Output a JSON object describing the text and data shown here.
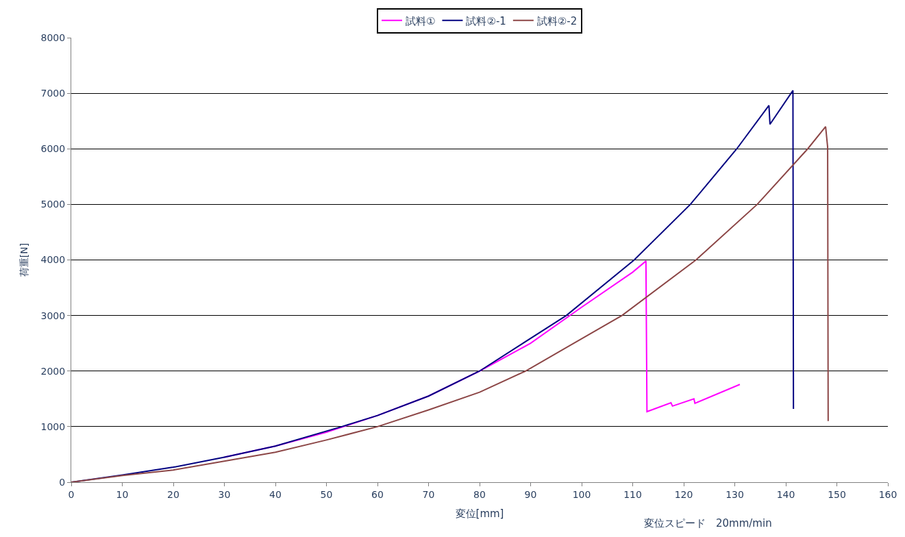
{
  "chart_data": {
    "type": "line",
    "xlabel": "変位[mm]",
    "ylabel": "荷重[N]",
    "annotations": [
      "変位スピード　20mm/min"
    ],
    "xlim": [
      0,
      160
    ],
    "xticks": [
      0,
      10,
      20,
      30,
      40,
      50,
      60,
      70,
      80,
      90,
      100,
      110,
      120,
      130,
      140,
      150,
      160
    ],
    "ylim": [
      0,
      8000
    ],
    "yticks": [
      0,
      1000,
      2000,
      3000,
      4000,
      5000,
      6000,
      7000,
      8000
    ],
    "grid": "y",
    "legend": "top",
    "marker": "none",
    "line_style": "solid",
    "series": [
      {
        "name": "試料①",
        "color": "#ff00ff",
        "x": [
          30,
          40,
          50,
          60,
          70,
          80,
          90,
          100,
          110,
          112.6,
          112.8,
          117.5,
          117.8,
          122,
          122.2,
          131
        ],
        "values": [
          450,
          650,
          900,
          1200,
          1550,
          2000,
          2500,
          3150,
          3780,
          3980,
          1270,
          1430,
          1370,
          1500,
          1420,
          1760
        ]
      },
      {
        "name": "試料②-1",
        "color": "#000080",
        "x": [
          0,
          10,
          20,
          30,
          40,
          53,
          60,
          70,
          80,
          97,
          110.3,
          121.3,
          130.4,
          136.7,
          136.9,
          141.4,
          141.5
        ],
        "values": [
          0,
          130,
          270,
          450,
          650,
          1000,
          1200,
          1550,
          2000,
          3000,
          4000,
          5000,
          6000,
          6780,
          6440,
          7050,
          1320
        ]
      },
      {
        "name": "試料②-2",
        "color": "#8c4646",
        "x": [
          0,
          10,
          20,
          30,
          40,
          50,
          60,
          70,
          80,
          89,
          107.9,
          122.4,
          134.4,
          144.3,
          147.8,
          148.2,
          148.3
        ],
        "values": [
          0,
          120,
          220,
          380,
          540,
          760,
          1000,
          1300,
          1620,
          2000,
          3000,
          4000,
          5000,
          6000,
          6400,
          6030,
          1100
        ]
      }
    ]
  }
}
